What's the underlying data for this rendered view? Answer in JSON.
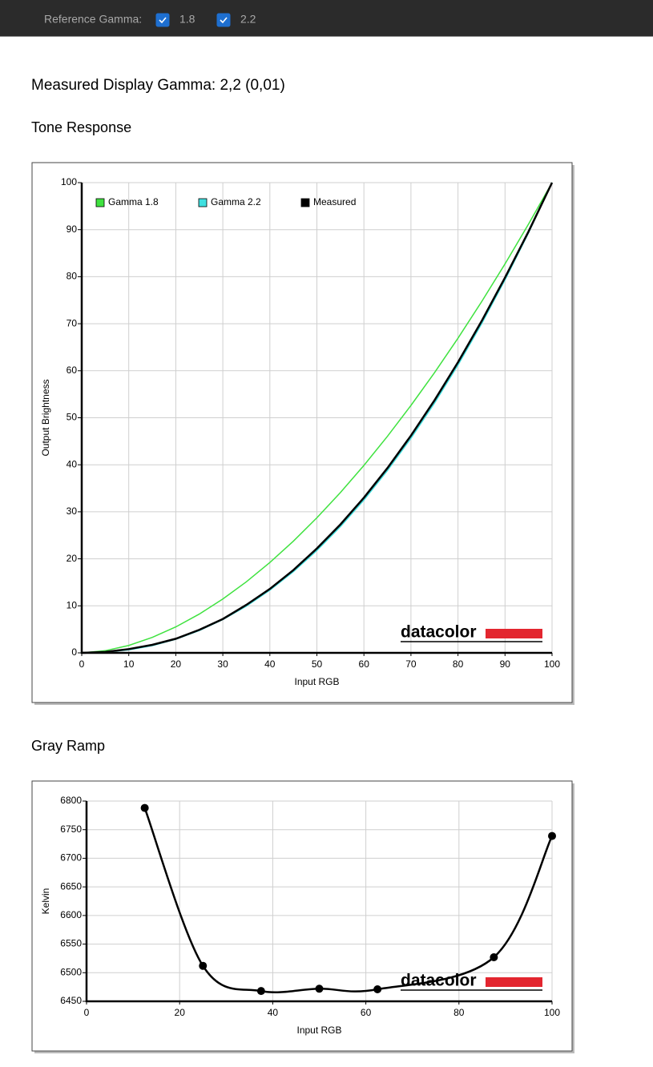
{
  "toolbar": {
    "label": "Reference Gamma:",
    "options": [
      {
        "label": "1.8",
        "checked": true
      },
      {
        "label": "2.2",
        "checked": true
      }
    ]
  },
  "measurement": "Measured Display Gamma: 2,2 (0,01)",
  "chart_data": [
    {
      "type": "line",
      "title": "Tone Response",
      "xlabel": "Input RGB",
      "ylabel": "Output Brightness",
      "watermark": "datacolor",
      "x": [
        0,
        5,
        10,
        15,
        20,
        25,
        30,
        35,
        40,
        45,
        50,
        55,
        60,
        65,
        70,
        75,
        80,
        85,
        90,
        95,
        100
      ],
      "series": [
        {
          "name": "Gamma 1.8",
          "color": "#3fe23f",
          "values": [
            0,
            0.46,
            1.58,
            3.29,
            5.52,
            8.25,
            11.45,
            15.11,
            19.22,
            23.76,
            28.72,
            34.09,
            39.87,
            46.05,
            52.62,
            59.58,
            66.92,
            74.64,
            82.72,
            91.18,
            100
          ]
        },
        {
          "name": "Gamma 2.2",
          "color": "#3fe0e0",
          "values": [
            0,
            0.14,
            0.63,
            1.54,
            2.9,
            4.74,
            7.07,
            9.93,
            13.32,
            17.26,
            21.76,
            26.84,
            32.5,
            38.76,
            45.63,
            53.1,
            61.21,
            69.94,
            79.31,
            89.33,
            100
          ]
        },
        {
          "name": "Measured",
          "color": "#000000",
          "values": [
            0,
            0.2,
            0.8,
            1.7,
            3.0,
            4.9,
            7.2,
            10.2,
            13.6,
            17.6,
            22.2,
            27.3,
            33.0,
            39.3,
            46.2,
            53.7,
            61.8,
            70.5,
            79.8,
            89.6,
            100
          ]
        }
      ],
      "xlim": [
        0,
        100
      ],
      "xticks": [
        0,
        10,
        20,
        30,
        40,
        50,
        60,
        70,
        80,
        90,
        100
      ],
      "ylim": [
        0,
        100
      ],
      "yticks": [
        0,
        10,
        20,
        30,
        40,
        50,
        60,
        70,
        80,
        90,
        100
      ],
      "grid": true,
      "legend": "top-left"
    },
    {
      "type": "line",
      "title": "Gray Ramp",
      "xlabel": "Input RGB",
      "ylabel": "Kelvin",
      "watermark": "datacolor",
      "x": [
        12.5,
        25,
        37.5,
        50,
        62.5,
        87.5,
        100
      ],
      "values": [
        6788,
        6512,
        6468,
        6472,
        6471,
        6527,
        6739
      ],
      "color": "#000000",
      "markers": true,
      "smooth": true,
      "xlim": [
        0,
        100
      ],
      "xticks": [
        0,
        20,
        40,
        60,
        80,
        100
      ],
      "ylim": [
        6450,
        6800
      ],
      "yticks": [
        6450,
        6500,
        6550,
        6600,
        6650,
        6700,
        6750,
        6800
      ],
      "grid": true
    }
  ]
}
